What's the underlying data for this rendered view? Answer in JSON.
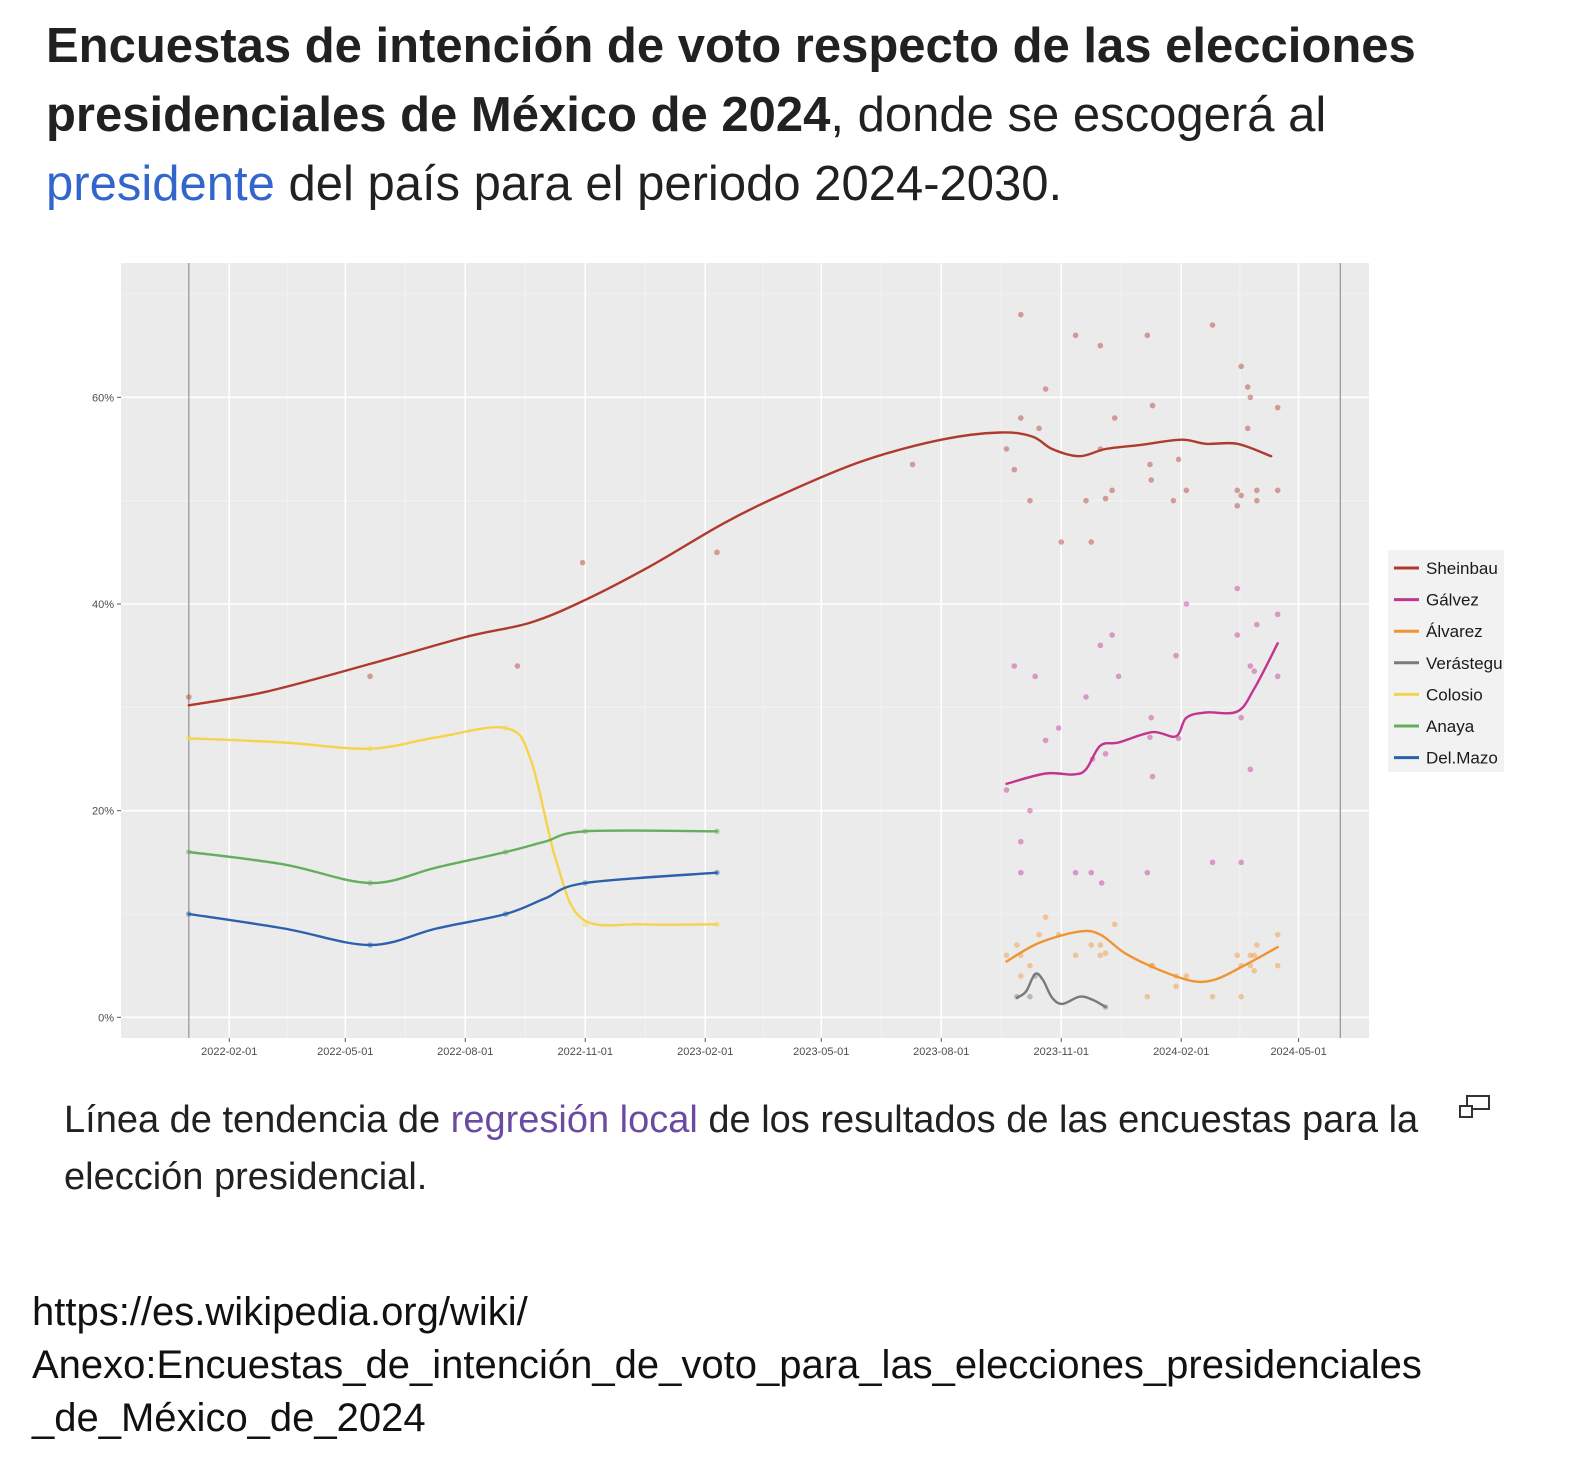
{
  "heading": {
    "bold": "Encuestas de intención de voto respecto de las elecciones presidenciales de México de 2024",
    "text_after_bold": ", donde se escogerá al ",
    "link": "presidente",
    "text_end": " del país para el periodo 2024-2030."
  },
  "caption": {
    "text_start": "Línea de tendencia de ",
    "link": "regresión local",
    "text_end": " de los resultados de las encuestas para la elección presidencial.",
    "expand_icon": "expand-icon"
  },
  "source": {
    "line1": "https://es.wikipedia.org/wiki/",
    "line2": "Anexo:Encuestas_de_intención_de_voto_para_las_elecciones_presidenciales",
    "line3": "_de_México_de_2024"
  },
  "chart_data": {
    "type": "line",
    "title": "",
    "xlabel": "",
    "ylabel": "",
    "x_axis_type": "date",
    "xlim": [
      "2021-11-10",
      "2024-06-24"
    ],
    "ylim": [
      -2,
      73
    ],
    "x_ticks": [
      "2022-02-01",
      "2022-05-01",
      "2022-08-01",
      "2022-11-01",
      "2023-02-01",
      "2023-05-01",
      "2023-08-01",
      "2023-11-01",
      "2024-02-01",
      "2024-05-01"
    ],
    "y_ticks": [
      0,
      20,
      40,
      60
    ],
    "y_tick_labels": [
      "0%",
      "20%",
      "40%",
      "60%"
    ],
    "vertical_lines": [
      "2022-01-01",
      "2024-06-02"
    ],
    "grid": true,
    "legend_position": "right",
    "series": [
      {
        "name": "Sheinbaum",
        "legend_label": "Sheinbau",
        "color": "#b03a2e",
        "trend": [
          [
            "2022-01-01",
            30.2
          ],
          [
            "2022-03-01",
            31.5
          ],
          [
            "2022-05-20",
            34.2
          ],
          [
            "2022-08-01",
            36.8
          ],
          [
            "2022-09-20",
            38.2
          ],
          [
            "2022-11-01",
            40.4
          ],
          [
            "2022-12-20",
            43.6
          ],
          [
            "2023-02-15",
            47.8
          ],
          [
            "2023-04-01",
            50.6
          ],
          [
            "2023-06-01",
            53.8
          ],
          [
            "2023-08-01",
            55.9
          ],
          [
            "2023-09-15",
            56.6
          ],
          [
            "2023-10-10",
            56.2
          ],
          [
            "2023-10-25",
            55.0
          ],
          [
            "2023-11-15",
            54.3
          ],
          [
            "2023-12-05",
            55.0
          ],
          [
            "2024-01-01",
            55.4
          ],
          [
            "2024-02-01",
            55.9
          ],
          [
            "2024-02-20",
            55.5
          ],
          [
            "2024-03-15",
            55.5
          ],
          [
            "2024-04-10",
            54.3
          ]
        ],
        "points": [
          [
            "2022-01-01",
            31
          ],
          [
            "2022-05-20",
            33
          ],
          [
            "2022-09-10",
            34
          ],
          [
            "2022-10-30",
            44
          ],
          [
            "2023-02-10",
            45
          ],
          [
            "2023-07-10",
            53.5
          ],
          [
            "2023-09-20",
            55
          ],
          [
            "2023-09-26",
            53
          ],
          [
            "2023-10-01",
            58
          ],
          [
            "2023-10-01",
            68
          ],
          [
            "2023-10-08",
            50
          ],
          [
            "2023-10-15",
            57
          ],
          [
            "2023-10-20",
            60.8
          ],
          [
            "2023-11-01",
            46
          ],
          [
            "2023-11-12",
            66
          ],
          [
            "2023-11-20",
            50
          ],
          [
            "2023-11-24",
            46
          ],
          [
            "2023-12-01",
            55
          ],
          [
            "2023-12-01",
            65
          ],
          [
            "2023-12-05",
            50.2
          ],
          [
            "2023-12-10",
            51
          ],
          [
            "2023-12-12",
            58
          ],
          [
            "2024-01-06",
            66
          ],
          [
            "2024-01-08",
            53.5
          ],
          [
            "2024-01-09",
            52
          ],
          [
            "2024-01-10",
            59.2
          ],
          [
            "2024-01-26",
            50
          ],
          [
            "2024-01-30",
            54
          ],
          [
            "2024-02-05",
            51
          ],
          [
            "2024-02-25",
            67
          ],
          [
            "2024-03-15",
            51
          ],
          [
            "2024-03-15",
            49.5
          ],
          [
            "2024-03-18",
            50.5
          ],
          [
            "2024-03-18",
            63
          ],
          [
            "2024-03-23",
            61
          ],
          [
            "2024-03-23",
            57
          ],
          [
            "2024-03-25",
            60
          ],
          [
            "2024-03-30",
            51
          ],
          [
            "2024-03-30",
            50
          ],
          [
            "2024-04-15",
            59
          ],
          [
            "2024-04-15",
            51
          ]
        ]
      },
      {
        "name": "Gálvez",
        "legend_label": "Gálvez",
        "color": "#c2348f",
        "trend": [
          [
            "2023-09-20",
            22.6
          ],
          [
            "2023-10-20",
            23.6
          ],
          [
            "2023-11-10",
            23.5
          ],
          [
            "2023-11-20",
            24.0
          ],
          [
            "2023-12-01",
            26.3
          ],
          [
            "2023-12-15",
            26.6
          ],
          [
            "2024-01-10",
            27.6
          ],
          [
            "2024-01-28",
            27.2
          ],
          [
            "2024-02-05",
            29.0
          ],
          [
            "2024-02-20",
            29.5
          ],
          [
            "2024-03-15",
            29.6
          ],
          [
            "2024-03-28",
            31.8
          ],
          [
            "2024-04-15",
            36.2
          ]
        ],
        "points": [
          [
            "2023-09-20",
            22
          ],
          [
            "2023-09-26",
            34
          ],
          [
            "2023-10-01",
            17
          ],
          [
            "2023-10-01",
            14
          ],
          [
            "2023-10-08",
            20
          ],
          [
            "2023-10-12",
            33
          ],
          [
            "2023-10-20",
            26.8
          ],
          [
            "2023-10-30",
            28
          ],
          [
            "2023-11-12",
            14
          ],
          [
            "2023-11-20",
            31
          ],
          [
            "2023-11-24",
            14
          ],
          [
            "2023-11-25",
            25
          ],
          [
            "2023-12-01",
            36
          ],
          [
            "2023-12-02",
            13
          ],
          [
            "2023-12-05",
            25.5
          ],
          [
            "2023-12-10",
            37
          ],
          [
            "2023-12-15",
            33
          ],
          [
            "2024-01-06",
            14
          ],
          [
            "2024-01-08",
            27.1
          ],
          [
            "2024-01-09",
            29
          ],
          [
            "2024-01-10",
            23.3
          ],
          [
            "2024-01-28",
            35
          ],
          [
            "2024-01-30",
            27
          ],
          [
            "2024-02-05",
            40
          ],
          [
            "2024-02-25",
            15
          ],
          [
            "2024-03-15",
            41.5
          ],
          [
            "2024-03-15",
            37
          ],
          [
            "2024-03-18",
            15
          ],
          [
            "2024-03-18",
            29
          ],
          [
            "2024-03-25",
            24
          ],
          [
            "2024-03-25",
            34
          ],
          [
            "2024-03-28",
            33.5
          ],
          [
            "2024-03-30",
            38
          ],
          [
            "2024-04-15",
            39
          ],
          [
            "2024-04-15",
            33
          ]
        ]
      },
      {
        "name": "Álvarez",
        "legend_label": "Álvarez",
        "color": "#ef9430",
        "trend": [
          [
            "2023-09-20",
            5.4
          ],
          [
            "2023-10-15",
            7.2
          ],
          [
            "2023-11-15",
            8.3
          ],
          [
            "2023-12-01",
            8.0
          ],
          [
            "2023-12-20",
            6.2
          ],
          [
            "2024-01-15",
            4.6
          ],
          [
            "2024-02-10",
            3.5
          ],
          [
            "2024-02-28",
            3.7
          ],
          [
            "2024-03-20",
            5.0
          ],
          [
            "2024-04-15",
            6.8
          ]
        ],
        "points": [
          [
            "2023-09-20",
            6
          ],
          [
            "2023-09-28",
            7
          ],
          [
            "2023-10-01",
            6
          ],
          [
            "2023-10-01",
            4
          ],
          [
            "2023-10-08",
            5
          ],
          [
            "2023-10-15",
            8
          ],
          [
            "2023-10-20",
            9.7
          ],
          [
            "2023-10-30",
            8
          ],
          [
            "2023-11-12",
            6
          ],
          [
            "2023-11-24",
            7
          ],
          [
            "2023-12-01",
            6
          ],
          [
            "2023-12-01",
            7
          ],
          [
            "2023-12-05",
            6.2
          ],
          [
            "2023-12-12",
            9
          ],
          [
            "2024-01-06",
            2
          ],
          [
            "2024-01-09",
            5
          ],
          [
            "2024-01-10",
            5
          ],
          [
            "2024-01-28",
            4
          ],
          [
            "2024-01-28",
            3
          ],
          [
            "2024-02-05",
            4
          ],
          [
            "2024-02-25",
            2
          ],
          [
            "2024-03-15",
            6
          ],
          [
            "2024-03-18",
            2
          ],
          [
            "2024-03-18",
            5
          ],
          [
            "2024-03-25",
            5
          ],
          [
            "2024-03-25",
            6
          ],
          [
            "2024-03-28",
            4.5
          ],
          [
            "2024-03-28",
            6
          ],
          [
            "2024-04-15",
            8
          ],
          [
            "2024-04-15",
            5
          ],
          [
            "2024-03-30",
            7
          ]
        ]
      },
      {
        "name": "Verástegui",
        "legend_label": "Verástegu",
        "color": "#7a7a7a",
        "trend": [
          [
            "2023-09-28",
            1.9
          ],
          [
            "2023-10-05",
            2.5
          ],
          [
            "2023-10-12",
            4.2
          ],
          [
            "2023-10-18",
            3.6
          ],
          [
            "2023-10-25",
            1.9
          ],
          [
            "2023-11-02",
            1.3
          ],
          [
            "2023-11-15",
            2.0
          ],
          [
            "2023-11-25",
            1.7
          ],
          [
            "2023-12-05",
            1.0
          ]
        ],
        "points": [
          [
            "2023-09-28",
            2
          ],
          [
            "2023-10-08",
            2
          ],
          [
            "2023-10-12",
            4
          ],
          [
            "2023-12-05",
            1
          ]
        ]
      },
      {
        "name": "Colosio",
        "legend_label": "Colosio",
        "color": "#f5d44b",
        "trend": [
          [
            "2022-01-01",
            27
          ],
          [
            "2022-03-15",
            26.6
          ],
          [
            "2022-05-20",
            26
          ],
          [
            "2022-07-10",
            27.1
          ],
          [
            "2022-09-01",
            28
          ],
          [
            "2022-09-20",
            25
          ],
          [
            "2022-10-10",
            15
          ],
          [
            "2022-10-30",
            9.5
          ],
          [
            "2022-12-15",
            9
          ],
          [
            "2023-02-10",
            9
          ]
        ],
        "points": [
          [
            "2022-01-01",
            27
          ],
          [
            "2022-05-20",
            26
          ],
          [
            "2022-09-01",
            28
          ],
          [
            "2022-11-01",
            9
          ],
          [
            "2023-02-10",
            9
          ]
        ]
      },
      {
        "name": "Anaya",
        "legend_label": "Anaya",
        "color": "#64ae5d",
        "trend": [
          [
            "2022-01-01",
            16
          ],
          [
            "2022-03-15",
            14.8
          ],
          [
            "2022-05-20",
            13
          ],
          [
            "2022-07-10",
            14.5
          ],
          [
            "2022-09-01",
            16
          ],
          [
            "2022-10-01",
            17
          ],
          [
            "2022-11-01",
            18
          ],
          [
            "2023-02-10",
            18
          ]
        ],
        "points": [
          [
            "2022-01-01",
            16
          ],
          [
            "2022-05-20",
            13
          ],
          [
            "2022-09-01",
            16
          ],
          [
            "2022-11-01",
            18
          ],
          [
            "2023-02-10",
            18
          ]
        ]
      },
      {
        "name": "Del.Mazo",
        "legend_label": "Del.Mazo",
        "color": "#2b60ad",
        "trend": [
          [
            "2022-01-01",
            10
          ],
          [
            "2022-03-15",
            8.6
          ],
          [
            "2022-05-20",
            7
          ],
          [
            "2022-07-10",
            8.6
          ],
          [
            "2022-09-01",
            10
          ],
          [
            "2022-10-01",
            11.5
          ],
          [
            "2022-11-01",
            13
          ],
          [
            "2023-02-10",
            14
          ]
        ],
        "points": [
          [
            "2022-01-01",
            10
          ],
          [
            "2022-05-20",
            7
          ],
          [
            "2022-09-01",
            10
          ],
          [
            "2022-11-01",
            13
          ],
          [
            "2023-02-10",
            14
          ]
        ]
      }
    ]
  }
}
